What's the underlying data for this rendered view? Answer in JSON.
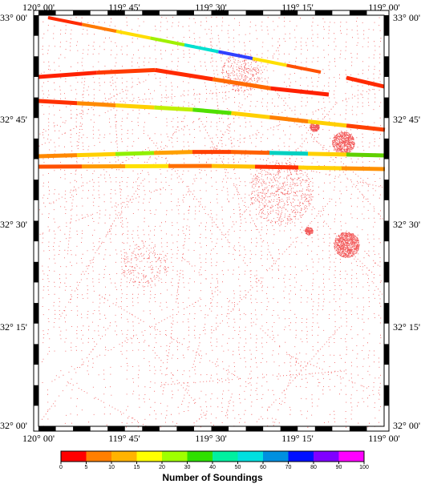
{
  "map": {
    "top_labels": [
      "120° 00'",
      "119° 45'",
      "119° 30'",
      "119° 15'",
      "119° 00'"
    ],
    "bottom_labels": [
      "120° 00'",
      "119° 45'",
      "119° 30'",
      "119° 15'",
      "119° 00'"
    ],
    "left_labels": [
      "33° 00'",
      "32° 45'",
      "32° 30'",
      "32° 15'",
      "32° 00'"
    ],
    "right_labels": [
      "33° 00'",
      "32° 45'",
      "32° 30'",
      "32° 15'",
      "32° 00'"
    ],
    "sounding_color": "#ee1c1c",
    "track_lines": [
      {
        "name": "track-line-1",
        "colors": [
          "#ff2a00",
          "#ff7a00",
          "#ffdd00",
          "#a0f000",
          "#00e0d0",
          "#3040ff",
          "#ffe000",
          "#ff5000"
        ]
      },
      {
        "name": "track-line-2",
        "colors": [
          "#ff2000",
          "#ff3a00",
          "#ff2a00",
          "#ff6a00",
          "#ff2000"
        ]
      },
      {
        "name": "track-line-3",
        "colors": [
          "#ff3000",
          "#ff8a00",
          "#ffd000",
          "#c0f000",
          "#50e000",
          "#ffd000",
          "#ff8000",
          "#ffcf00",
          "#ff4000"
        ]
      },
      {
        "name": "track-line-4",
        "colors": [
          "#ff8800",
          "#ffd000",
          "#90f000",
          "#ffa000",
          "#ff4000",
          "#ff6000",
          "#00d0c0",
          "#ffd000",
          "#60d000"
        ]
      },
      {
        "name": "track-line-5",
        "colors": [
          "#ff5000",
          "#ff9a00",
          "#ffe000",
          "#ff7000",
          "#ffc000",
          "#ff3000",
          "#ffd000",
          "#ff9000"
        ]
      }
    ]
  },
  "colorbar": {
    "title": "Number of Soundings",
    "ticks": [
      "0",
      "5",
      "10",
      "15",
      "20",
      "30",
      "40",
      "50",
      "60",
      "70",
      "80",
      "90",
      "100"
    ],
    "colors": [
      "#ff0000",
      "#ff7f00",
      "#ffb300",
      "#ffff00",
      "#9fff00",
      "#2fe000",
      "#00f0a0",
      "#00e0e0",
      "#0090e0",
      "#0010ff",
      "#8000ff",
      "#ff00ff"
    ]
  }
}
